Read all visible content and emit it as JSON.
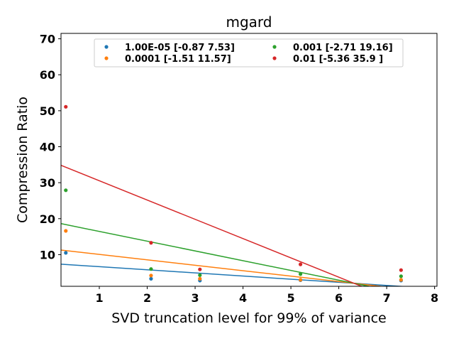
{
  "chart_data": {
    "type": "scatter",
    "title": "mgard",
    "xlabel": "SVD truncation level for 99% of variance",
    "ylabel": "Compression Ratio",
    "xlim": [
      0.2,
      8.05
    ],
    "ylim": [
      1.2,
      71.5
    ],
    "xticks": [
      1,
      2,
      3,
      4,
      5,
      6,
      7,
      8
    ],
    "yticks": [
      10,
      20,
      30,
      40,
      50,
      60,
      70
    ],
    "grid": false,
    "legend_position": "top",
    "series": [
      {
        "name": "1.00E-05 [-0.87  7.53]",
        "color": "#1f77b4",
        "points": [
          [
            0.3,
            10.5
          ],
          [
            2.08,
            3.3
          ],
          [
            3.1,
            2.8
          ],
          [
            5.2,
            2.9
          ],
          [
            7.3,
            2.8
          ]
        ],
        "fit": {
          "slope": -0.87,
          "intercept": 7.53
        }
      },
      {
        "name": "0.0001 [-1.51 11.57]",
        "color": "#ff7f0e",
        "points": [
          [
            0.3,
            16.6
          ],
          [
            2.08,
            4.2
          ],
          [
            3.1,
            3.3
          ],
          [
            5.2,
            3.0
          ],
          [
            7.3,
            3.0
          ]
        ],
        "fit": {
          "slope": -1.51,
          "intercept": 11.57
        }
      },
      {
        "name": "0.001 [-2.71 19.16]",
        "color": "#2ca02c",
        "points": [
          [
            0.3,
            27.9
          ],
          [
            2.08,
            6.0
          ],
          [
            3.1,
            4.3
          ],
          [
            5.2,
            4.6
          ],
          [
            7.3,
            4.0
          ]
        ],
        "fit": {
          "slope": -2.71,
          "intercept": 19.16
        }
      },
      {
        "name": "0.01 [-5.36 35.9 ]",
        "color": "#d62728",
        "points": [
          [
            0.3,
            51.1
          ],
          [
            2.08,
            13.3
          ],
          [
            3.1,
            5.9
          ],
          [
            5.2,
            7.3
          ],
          [
            7.3,
            5.7
          ]
        ],
        "fit": {
          "slope": -5.36,
          "intercept": 35.9
        }
      }
    ]
  }
}
